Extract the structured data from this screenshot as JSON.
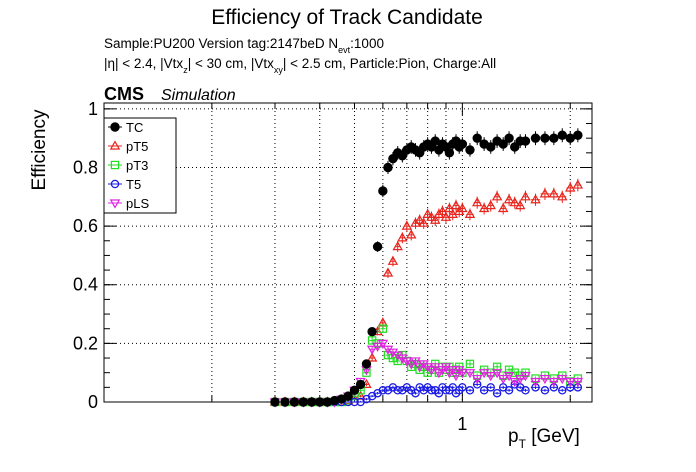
{
  "title": "Efficiency of Track Candidate",
  "subtitle_line1_pre": "Sample:PU200   Version tag:2147beD  N",
  "subtitle_line1_sub": "evt",
  "subtitle_line1_post": ":1000",
  "subtitle_line2": {
    "p1": "|η| < 2.4, |Vtx",
    "s1": "z",
    "p2": "| < 30 cm, |Vtx",
    "s2": "xy",
    "p3": "| < 2.5 cm, Particle:Pion, Charge:All"
  },
  "cms_label": "CMS",
  "sim_label": "Simulation",
  "colors": {
    "TC": "#000000",
    "pT5": "#e8241c",
    "pT3": "#22dd22",
    "T5": "#1a1ae6",
    "pLS": "#e020e0"
  },
  "chart_data": {
    "type": "scatter",
    "xscale": "log",
    "xlabel_main": "p",
    "xlabel_sub": "T",
    "xlabel_unit": " [GeV]",
    "ylabel": "Efficiency",
    "xlim": [
      0.1,
      2.3
    ],
    "ylim": [
      0,
      1.02
    ],
    "yticks": [
      0,
      0.2,
      0.4,
      0.6,
      0.8,
      1
    ],
    "ytick_labels": [
      "0",
      "0.2",
      "0.4",
      "0.6",
      "0.8",
      "1"
    ],
    "xticks": [
      1
    ],
    "xtick_labels": [
      "1"
    ],
    "grid": true,
    "legend_position": "top-left",
    "x": [
      0.3,
      0.32,
      0.34,
      0.36,
      0.38,
      0.4,
      0.42,
      0.44,
      0.46,
      0.48,
      0.5,
      0.52,
      0.54,
      0.56,
      0.58,
      0.6,
      0.62,
      0.64,
      0.66,
      0.68,
      0.7,
      0.72,
      0.74,
      0.76,
      0.78,
      0.8,
      0.82,
      0.84,
      0.86,
      0.88,
      0.9,
      0.92,
      0.94,
      0.96,
      0.98,
      1.0,
      1.05,
      1.1,
      1.15,
      1.2,
      1.25,
      1.3,
      1.35,
      1.4,
      1.45,
      1.5,
      1.6,
      1.7,
      1.8,
      1.9,
      2.0,
      2.1
    ],
    "series": [
      {
        "name": "TC",
        "marker": "circle-filled",
        "values": [
          0.0,
          0.0,
          0.0,
          0.0,
          0.0,
          0.0,
          0.0,
          0.005,
          0.01,
          0.02,
          0.04,
          0.06,
          0.13,
          0.24,
          0.53,
          0.72,
          0.8,
          0.83,
          0.85,
          0.84,
          0.86,
          0.87,
          0.86,
          0.85,
          0.87,
          0.88,
          0.87,
          0.89,
          0.86,
          0.88,
          0.87,
          0.85,
          0.88,
          0.89,
          0.87,
          0.88,
          0.86,
          0.9,
          0.88,
          0.87,
          0.89,
          0.88,
          0.9,
          0.87,
          0.89,
          0.89,
          0.9,
          0.9,
          0.9,
          0.91,
          0.9,
          0.91
        ]
      },
      {
        "name": "pT5",
        "marker": "triangle-open",
        "values": [
          0.0,
          0.0,
          0.0,
          0.0,
          0.0,
          0.0,
          0.0,
          0.0,
          0.0,
          0.005,
          0.01,
          0.02,
          0.06,
          0.15,
          0.24,
          0.27,
          0.44,
          0.48,
          0.53,
          0.56,
          0.6,
          0.57,
          0.61,
          0.62,
          0.61,
          0.64,
          0.63,
          0.62,
          0.64,
          0.65,
          0.63,
          0.66,
          0.64,
          0.67,
          0.65,
          0.66,
          0.64,
          0.68,
          0.66,
          0.67,
          0.7,
          0.66,
          0.69,
          0.68,
          0.67,
          0.7,
          0.69,
          0.71,
          0.71,
          0.7,
          0.73,
          0.74
        ]
      },
      {
        "name": "pT3",
        "marker": "square-open",
        "values": [
          0.0,
          0.0,
          0.0,
          0.0,
          0.0,
          0.0,
          0.0,
          0.0,
          0.0,
          0.005,
          0.02,
          0.04,
          0.1,
          0.21,
          0.2,
          0.25,
          0.16,
          0.15,
          0.14,
          0.16,
          0.14,
          0.12,
          0.13,
          0.11,
          0.12,
          0.1,
          0.11,
          0.13,
          0.1,
          0.12,
          0.11,
          0.12,
          0.1,
          0.11,
          0.12,
          0.1,
          0.13,
          0.09,
          0.11,
          0.1,
          0.12,
          0.09,
          0.11,
          0.1,
          0.09,
          0.1,
          0.08,
          0.09,
          0.08,
          0.09,
          0.07,
          0.08
        ]
      },
      {
        "name": "T5",
        "marker": "circle-open",
        "values": [
          0.0,
          0.0,
          0.0,
          0.0,
          0.0,
          0.0,
          0.0,
          0.0,
          0.0,
          0.0,
          0.0,
          0.0,
          0.01,
          0.02,
          0.03,
          0.04,
          0.04,
          0.05,
          0.04,
          0.04,
          0.05,
          0.04,
          0.03,
          0.05,
          0.04,
          0.05,
          0.04,
          0.04,
          0.03,
          0.05,
          0.04,
          0.04,
          0.05,
          0.03,
          0.04,
          0.05,
          0.04,
          0.06,
          0.04,
          0.05,
          0.03,
          0.05,
          0.04,
          0.06,
          0.05,
          0.04,
          0.05,
          0.04,
          0.05,
          0.04,
          0.05,
          0.05
        ]
      },
      {
        "name": "pLS",
        "marker": "triangle-down-open",
        "values": [
          0.0,
          0.0,
          0.0,
          0.0,
          0.0,
          0.0,
          0.0,
          0.0,
          0.01,
          0.02,
          0.04,
          0.07,
          0.11,
          0.18,
          0.19,
          0.2,
          0.18,
          0.17,
          0.16,
          0.15,
          0.14,
          0.13,
          0.14,
          0.12,
          0.13,
          0.12,
          0.11,
          0.12,
          0.1,
          0.11,
          0.12,
          0.1,
          0.11,
          0.09,
          0.11,
          0.1,
          0.1,
          0.08,
          0.1,
          0.09,
          0.1,
          0.08,
          0.09,
          0.07,
          0.08,
          0.09,
          0.07,
          0.08,
          0.07,
          0.08,
          0.07,
          0.07
        ]
      }
    ]
  }
}
